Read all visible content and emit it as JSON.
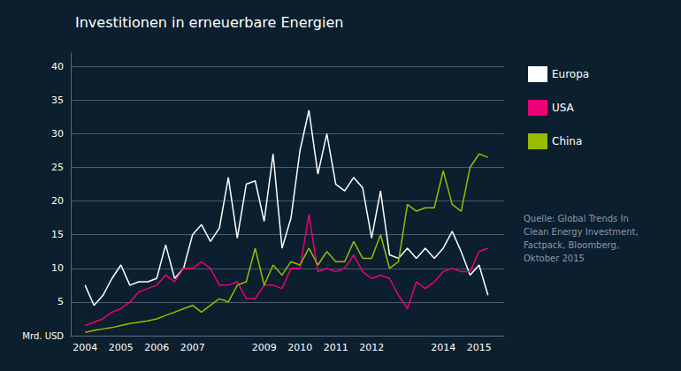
{
  "chart_data": {
    "type": "line",
    "title": "Investitionen in erneuerbare Energien",
    "ylabel": "Mrd. USD",
    "annotation": "Quelle: Global Trends In\nClean Energy Investment,\nFactpack, Bloomberg,\nOktober 2015",
    "x": [
      2004.0,
      2004.25,
      2004.5,
      2004.75,
      2005.0,
      2005.25,
      2005.5,
      2005.75,
      2006.0,
      2006.25,
      2006.5,
      2006.75,
      2007.0,
      2007.25,
      2007.5,
      2007.75,
      2008.0,
      2008.25,
      2008.5,
      2008.75,
      2009.0,
      2009.25,
      2009.5,
      2009.75,
      2010.0,
      2010.25,
      2010.5,
      2010.75,
      2011.0,
      2011.25,
      2011.5,
      2011.75,
      2012.0,
      2012.25,
      2012.5,
      2012.75,
      2013.0,
      2013.25,
      2013.5,
      2013.75,
      2014.0,
      2014.25,
      2014.5,
      2014.75,
      2015.0,
      2015.25
    ],
    "series": [
      {
        "name": "Europa",
        "color": "#ffffff",
        "values": [
          7.5,
          4.5,
          6.0,
          8.5,
          10.5,
          7.5,
          8.0,
          8.0,
          8.5,
          13.5,
          8.5,
          10.0,
          15.0,
          16.5,
          14.0,
          16.0,
          23.5,
          14.5,
          22.5,
          23.0,
          17.0,
          27.0,
          13.0,
          17.5,
          27.5,
          33.5,
          24.0,
          30.0,
          22.5,
          21.5,
          23.5,
          22.0,
          14.5,
          21.5,
          12.0,
          11.5,
          13.0,
          11.5,
          13.0,
          11.5,
          13.0,
          15.5,
          12.5,
          9.0,
          10.5,
          6.0
        ]
      },
      {
        "name": "USA",
        "color": "#ee0077",
        "values": [
          1.5,
          2.0,
          2.5,
          3.5,
          4.0,
          5.0,
          6.5,
          7.0,
          7.5,
          9.0,
          8.0,
          10.0,
          10.0,
          11.0,
          10.0,
          7.5,
          7.5,
          8.0,
          5.5,
          5.5,
          7.5,
          7.5,
          7.0,
          10.0,
          10.0,
          18.0,
          9.5,
          10.0,
          9.5,
          10.0,
          12.0,
          9.5,
          8.5,
          9.0,
          8.5,
          6.0,
          4.0,
          8.0,
          7.0,
          8.0,
          9.5,
          10.0,
          9.5,
          9.5,
          12.5,
          13.0
        ]
      },
      {
        "name": "China",
        "color": "#99bb00",
        "values": [
          0.5,
          0.8,
          1.0,
          1.2,
          1.5,
          1.8,
          2.0,
          2.2,
          2.5,
          3.0,
          3.5,
          4.0,
          4.5,
          3.5,
          4.5,
          5.5,
          5.0,
          7.5,
          8.0,
          13.0,
          7.5,
          10.5,
          9.0,
          11.0,
          10.5,
          13.0,
          10.5,
          12.5,
          11.0,
          11.0,
          14.0,
          11.5,
          11.5,
          15.0,
          10.0,
          11.0,
          19.5,
          18.5,
          19.0,
          19.0,
          24.5,
          19.5,
          18.5,
          25.0,
          27.0,
          26.5
        ]
      }
    ],
    "xlim": [
      2003.6,
      2015.7
    ],
    "xticks": [
      2004,
      2005,
      2006,
      2007,
      2009,
      2010,
      2011,
      2012,
      2014,
      2015
    ],
    "ylim": [
      0,
      42
    ],
    "yticks": [
      5,
      10,
      15,
      20,
      25,
      30,
      35,
      40
    ],
    "grid": true,
    "legend": "right"
  }
}
